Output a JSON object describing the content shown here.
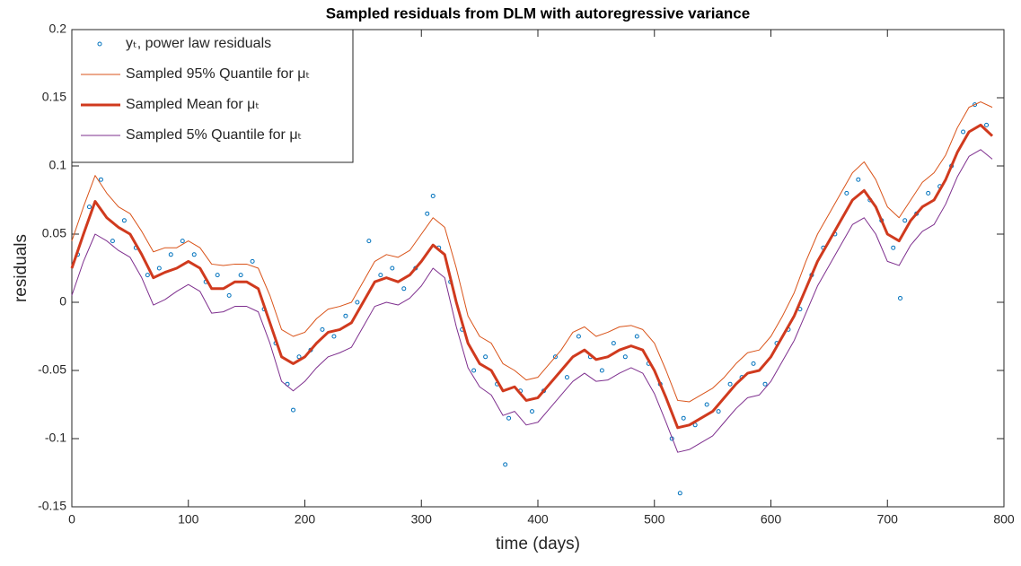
{
  "chart_data": {
    "type": "line",
    "title": "Sampled residuals from DLM with autoregressive variance",
    "xlabel": "time (days)",
    "ylabel": "residuals",
    "xlim": [
      0,
      800
    ],
    "ylim": [
      -0.15,
      0.2
    ],
    "xticks": [
      0,
      100,
      200,
      300,
      400,
      500,
      600,
      700,
      800
    ],
    "yticks": [
      -0.15,
      -0.1,
      -0.05,
      0,
      0.05,
      0.1,
      0.15,
      0.2
    ],
    "grid": false,
    "legend": "upper left",
    "x": [
      0,
      10,
      20,
      30,
      40,
      50,
      60,
      70,
      80,
      90,
      100,
      110,
      120,
      130,
      140,
      150,
      160,
      170,
      180,
      190,
      200,
      210,
      220,
      230,
      240,
      250,
      260,
      270,
      280,
      290,
      300,
      310,
      320,
      330,
      340,
      350,
      360,
      370,
      380,
      390,
      400,
      410,
      420,
      430,
      440,
      450,
      460,
      470,
      480,
      490,
      500,
      510,
      520,
      530,
      540,
      550,
      560,
      570,
      580,
      590,
      600,
      610,
      620,
      630,
      640,
      650,
      660,
      670,
      680,
      690,
      700,
      710,
      720,
      730,
      740,
      750,
      760,
      770,
      780,
      790
    ],
    "series": [
      {
        "name": "yₜ, power law residuals",
        "style": "scatter",
        "color": "#0072bd",
        "x": [
          5,
          15,
          25,
          35,
          45,
          55,
          65,
          75,
          85,
          95,
          105,
          115,
          125,
          135,
          145,
          155,
          165,
          175,
          185,
          195,
          205,
          215,
          225,
          235,
          245,
          255,
          265,
          275,
          285,
          295,
          305,
          315,
          325,
          335,
          345,
          355,
          365,
          375,
          385,
          395,
          405,
          415,
          425,
          435,
          445,
          455,
          465,
          475,
          485,
          495,
          505,
          515,
          525,
          535,
          545,
          555,
          565,
          575,
          585,
          595,
          605,
          615,
          625,
          635,
          645,
          655,
          665,
          675,
          685,
          695,
          705,
          715,
          725,
          735,
          745,
          755,
          765,
          775,
          785,
          372,
          522,
          711,
          310,
          190
        ],
        "values": [
          0.035,
          0.07,
          0.09,
          0.045,
          0.06,
          0.04,
          0.02,
          0.025,
          0.035,
          0.045,
          0.035,
          0.015,
          0.02,
          0.005,
          0.02,
          0.03,
          -0.005,
          -0.03,
          -0.06,
          -0.04,
          -0.035,
          -0.02,
          -0.025,
          -0.01,
          0.0,
          0.045,
          0.02,
          0.025,
          0.01,
          0.025,
          0.065,
          0.04,
          0.015,
          -0.02,
          -0.05,
          -0.04,
          -0.06,
          -0.085,
          -0.065,
          -0.08,
          -0.065,
          -0.04,
          -0.055,
          -0.025,
          -0.04,
          -0.05,
          -0.03,
          -0.04,
          -0.025,
          -0.045,
          -0.06,
          -0.1,
          -0.085,
          -0.09,
          -0.075,
          -0.08,
          -0.06,
          -0.055,
          -0.045,
          -0.06,
          -0.03,
          -0.02,
          -0.005,
          0.02,
          0.04,
          0.05,
          0.08,
          0.09,
          0.075,
          0.06,
          0.04,
          0.06,
          0.065,
          0.08,
          0.085,
          0.1,
          0.125,
          0.145,
          0.13,
          -0.119,
          -0.14,
          0.003,
          0.078,
          -0.079
        ]
      },
      {
        "name": "Sampled 95% Quantile for μₜ",
        "style": "line",
        "color": "#d95319",
        "width": 1,
        "values": [
          0.045,
          0.07,
          0.093,
          0.08,
          0.07,
          0.065,
          0.052,
          0.037,
          0.04,
          0.04,
          0.045,
          0.04,
          0.028,
          0.027,
          0.028,
          0.028,
          0.025,
          0.005,
          -0.02,
          -0.025,
          -0.022,
          -0.012,
          -0.005,
          -0.003,
          0.0,
          0.015,
          0.03,
          0.035,
          0.033,
          0.038,
          0.05,
          0.062,
          0.055,
          0.025,
          -0.01,
          -0.025,
          -0.03,
          -0.045,
          -0.05,
          -0.057,
          -0.055,
          -0.045,
          -0.035,
          -0.022,
          -0.018,
          -0.025,
          -0.022,
          -0.018,
          -0.017,
          -0.02,
          -0.03,
          -0.05,
          -0.072,
          -0.073,
          -0.068,
          -0.063,
          -0.055,
          -0.045,
          -0.037,
          -0.035,
          -0.025,
          -0.01,
          0.007,
          0.03,
          0.05,
          0.065,
          0.08,
          0.095,
          0.103,
          0.09,
          0.07,
          0.062,
          0.075,
          0.088,
          0.095,
          0.108,
          0.128,
          0.143,
          0.147,
          0.143
        ]
      },
      {
        "name": "Sampled Mean for μₜ",
        "style": "line",
        "color": "#d03a1e",
        "width": 3,
        "values": [
          0.025,
          0.05,
          0.074,
          0.062,
          0.055,
          0.05,
          0.035,
          0.018,
          0.022,
          0.025,
          0.03,
          0.025,
          0.01,
          0.01,
          0.015,
          0.015,
          0.01,
          -0.015,
          -0.04,
          -0.045,
          -0.04,
          -0.03,
          -0.022,
          -0.02,
          -0.015,
          0.0,
          0.015,
          0.018,
          0.015,
          0.02,
          0.03,
          0.042,
          0.035,
          0.0,
          -0.03,
          -0.045,
          -0.05,
          -0.065,
          -0.062,
          -0.072,
          -0.07,
          -0.06,
          -0.05,
          -0.04,
          -0.035,
          -0.042,
          -0.04,
          -0.035,
          -0.032,
          -0.035,
          -0.05,
          -0.07,
          -0.092,
          -0.09,
          -0.085,
          -0.08,
          -0.07,
          -0.06,
          -0.052,
          -0.05,
          -0.04,
          -0.025,
          -0.01,
          0.01,
          0.03,
          0.045,
          0.06,
          0.075,
          0.082,
          0.07,
          0.05,
          0.045,
          0.06,
          0.07,
          0.075,
          0.09,
          0.11,
          0.125,
          0.13,
          0.122
        ]
      },
      {
        "name": "Sampled 5% Quantile for μₜ",
        "style": "line",
        "color": "#7e2f8e",
        "width": 1,
        "values": [
          0.005,
          0.03,
          0.05,
          0.045,
          0.038,
          0.033,
          0.018,
          -0.002,
          0.002,
          0.008,
          0.013,
          0.008,
          -0.008,
          -0.007,
          -0.003,
          -0.003,
          -0.007,
          -0.03,
          -0.058,
          -0.065,
          -0.058,
          -0.048,
          -0.04,
          -0.037,
          -0.033,
          -0.018,
          -0.003,
          0.0,
          -0.002,
          0.003,
          0.012,
          0.025,
          0.018,
          -0.018,
          -0.048,
          -0.062,
          -0.068,
          -0.083,
          -0.08,
          -0.09,
          -0.088,
          -0.078,
          -0.068,
          -0.058,
          -0.052,
          -0.058,
          -0.057,
          -0.052,
          -0.048,
          -0.052,
          -0.067,
          -0.088,
          -0.11,
          -0.108,
          -0.103,
          -0.098,
          -0.088,
          -0.078,
          -0.07,
          -0.068,
          -0.058,
          -0.043,
          -0.028,
          -0.008,
          0.012,
          0.027,
          0.042,
          0.057,
          0.062,
          0.05,
          0.03,
          0.027,
          0.042,
          0.052,
          0.057,
          0.072,
          0.092,
          0.107,
          0.112,
          0.105
        ]
      }
    ]
  }
}
